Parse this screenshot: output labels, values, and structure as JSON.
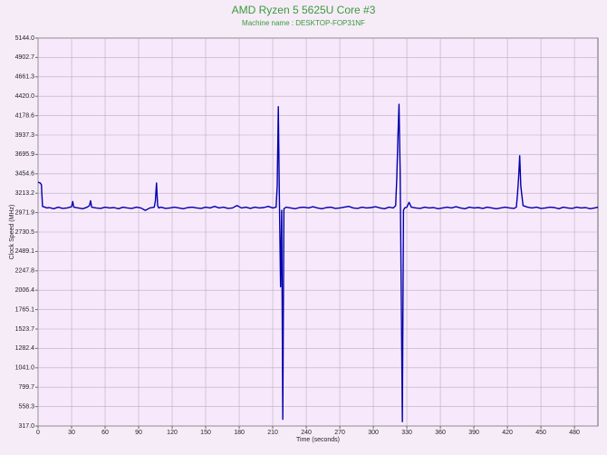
{
  "chart_data": {
    "type": "line",
    "title": "AMD Ryzen 5 5625U Core #3",
    "subtitle": "Machine name : DESKTOP-FOP31NF",
    "x_label": "Time (seconds)",
    "y_label": "Clock Speed (MHz)",
    "grid": true,
    "xlim": [
      0,
      501
    ],
    "xticks": [
      0,
      30,
      60,
      90,
      120,
      150,
      180,
      210,
      240,
      270,
      300,
      330,
      360,
      390,
      420,
      450,
      480
    ],
    "ylim": [
      317,
      5144
    ],
    "yticks": [
      {
        "value": 317,
        "label": "317.0"
      },
      558.3,
      799.7,
      {
        "value": 1041,
        "label": "1041.0"
      },
      1282.4,
      1523.7,
      1765.1,
      2006.4,
      2247.8,
      2489.1,
      2730.5,
      2971.9,
      3213.2,
      3454.6,
      3695.9,
      3937.3,
      4178.6,
      {
        "value": 4420,
        "label": "4420.0"
      },
      4661.3,
      4902.7,
      {
        "value": 5144,
        "label": "5144.0"
      }
    ],
    "x": [
      0,
      2,
      3,
      4,
      6,
      8,
      10,
      14,
      18,
      22,
      26,
      30,
      31,
      32,
      36,
      40,
      44,
      46,
      47,
      48,
      52,
      56,
      60,
      64,
      68,
      72,
      76,
      80,
      84,
      88,
      92,
      96,
      100,
      104,
      105,
      106,
      107,
      108,
      110,
      114,
      118,
      122,
      126,
      130,
      134,
      138,
      142,
      146,
      150,
      154,
      158,
      162,
      166,
      170,
      174,
      178,
      182,
      186,
      190,
      194,
      198,
      202,
      206,
      210,
      213,
      214,
      215,
      216,
      217,
      218,
      219,
      220,
      221,
      222,
      226,
      230,
      234,
      238,
      242,
      246,
      250,
      254,
      258,
      262,
      266,
      270,
      274,
      278,
      282,
      286,
      290,
      294,
      298,
      302,
      306,
      310,
      314,
      318,
      320,
      321,
      322,
      323,
      324,
      325,
      326,
      327,
      328,
      330,
      332,
      334,
      338,
      342,
      346,
      350,
      354,
      358,
      362,
      366,
      370,
      374,
      378,
      382,
      386,
      390,
      394,
      398,
      402,
      406,
      410,
      414,
      418,
      422,
      426,
      428,
      429,
      430,
      431,
      432,
      434,
      438,
      442,
      446,
      450,
      454,
      458,
      462,
      466,
      470,
      474,
      478,
      482,
      486,
      490,
      494,
      498,
      501
    ],
    "series": [
      {
        "color": "#0000aa",
        "values": [
          3350,
          3340,
          3320,
          3050,
          3040,
          3030,
          3035,
          3020,
          3040,
          3025,
          3030,
          3045,
          3110,
          3040,
          3030,
          3020,
          3040,
          3060,
          3120,
          3040,
          3030,
          3025,
          3040,
          3030,
          3035,
          3020,
          3040,
          3030,
          3025,
          3040,
          3030,
          3000,
          3030,
          3040,
          3120,
          3340,
          3060,
          3030,
          3040,
          3025,
          3030,
          3040,
          3030,
          3020,
          3035,
          3040,
          3030,
          3025,
          3040,
          3030,
          3050,
          3030,
          3040,
          3025,
          3030,
          3060,
          3030,
          3040,
          3025,
          3040,
          3030,
          3035,
          3050,
          3030,
          3040,
          3300,
          4290,
          3100,
          2050,
          3000,
          400,
          3020,
          3030,
          3040,
          3030,
          3020,
          3035,
          3040,
          3030,
          3045,
          3030,
          3020,
          3035,
          3040,
          3025,
          3030,
          3040,
          3050,
          3030,
          3025,
          3040,
          3030,
          3035,
          3045,
          3030,
          3020,
          3040,
          3030,
          3060,
          3400,
          3900,
          4320,
          3500,
          1950,
          370,
          3000,
          3030,
          3040,
          3100,
          3040,
          3030,
          3025,
          3040,
          3030,
          3035,
          3020,
          3030,
          3040,
          3030,
          3045,
          3030,
          3020,
          3040,
          3030,
          3035,
          3025,
          3040,
          3030,
          3020,
          3030,
          3040,
          3030,
          3025,
          3040,
          3200,
          3400,
          3680,
          3300,
          3060,
          3040,
          3030,
          3040,
          3025,
          3030,
          3040,
          3035,
          3020,
          3040,
          3030,
          3025,
          3040,
          3030,
          3035,
          3020,
          3030,
          3040
        ]
      }
    ]
  }
}
